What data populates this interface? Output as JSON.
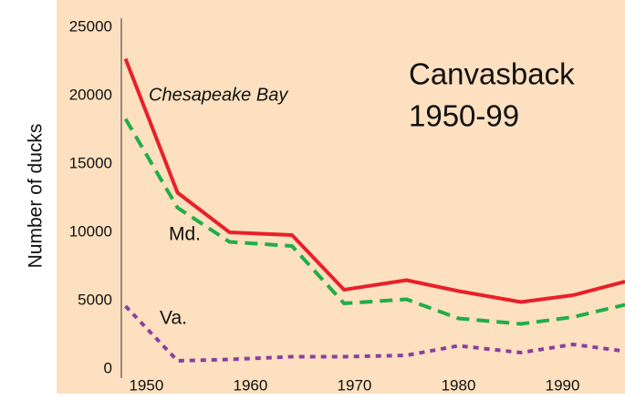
{
  "chart_data": {
    "type": "line",
    "title": "Canvasback",
    "subtitle": "1950-99",
    "y_label": "Number of ducks",
    "x": [
      1948,
      1953,
      1958,
      1964,
      1969,
      1975,
      1980,
      1986,
      1991,
      1996
    ],
    "series": [
      {
        "name": "Chesapeake Bay",
        "color": "#e8202a",
        "style": "solid",
        "values": [
          22700,
          12900,
          10000,
          9800,
          5800,
          6500,
          5700,
          4900,
          5400,
          6400
        ]
      },
      {
        "name": "Md.",
        "color": "#1fae4a",
        "style": "dashed",
        "values": [
          18300,
          11800,
          9300,
          9000,
          4800,
          5100,
          3700,
          3300,
          3800,
          4700
        ]
      },
      {
        "name": "Va.",
        "color": "#8a3fa0",
        "style": "dotted",
        "values": [
          4600,
          600,
          700,
          900,
          900,
          1000,
          1700,
          1200,
          1800,
          1300
        ]
      }
    ],
    "xlim": [
      1947.6,
      1996
    ],
    "xticks": [
      1950,
      1960,
      1970,
      1980,
      1990
    ],
    "ylim": [
      0,
      25000
    ],
    "yticks": [
      0,
      5000,
      10000,
      15000,
      20000,
      25000
    ]
  }
}
